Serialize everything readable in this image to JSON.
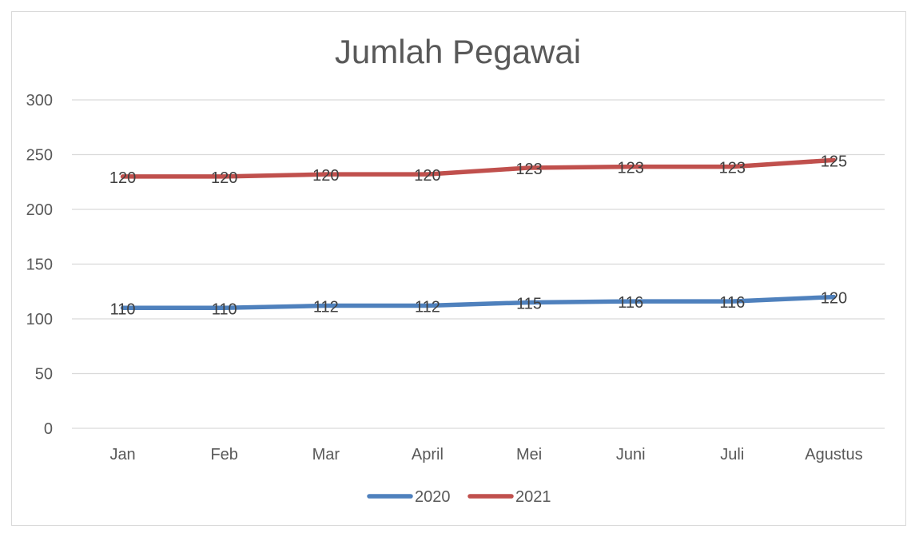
{
  "chart_data": {
    "type": "line",
    "title": "Jumlah Pegawai",
    "categories": [
      "Jan",
      "Feb",
      "Mar",
      "April",
      "Mei",
      "Juni",
      "Juli",
      "Agustus"
    ],
    "series": [
      {
        "name": "2020",
        "color": "#4f81bd",
        "values": [
          110,
          110,
          112,
          112,
          115,
          116,
          116,
          120
        ],
        "plotted": [
          110,
          110,
          112,
          112,
          115,
          116,
          116,
          120
        ]
      },
      {
        "name": "2021",
        "color": "#c0504d",
        "values": [
          120,
          120,
          120,
          120,
          123,
          123,
          123,
          125
        ],
        "plotted": [
          230,
          230,
          232,
          232,
          238,
          239,
          239,
          245
        ]
      }
    ],
    "yticks": [
      "0",
      "50",
      "100",
      "150",
      "200",
      "250",
      "300"
    ],
    "ylim": [
      0,
      300
    ],
    "grid": true,
    "legend": "bottom-center"
  }
}
